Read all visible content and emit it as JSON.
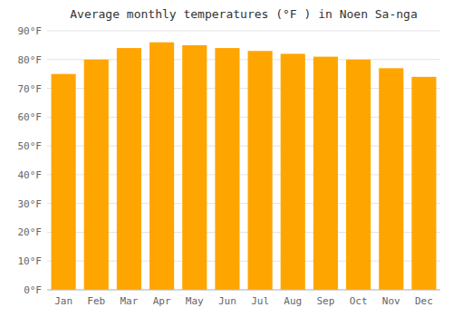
{
  "chart_data": {
    "type": "bar",
    "title": "Average monthly temperatures (°F ) in Noen Sa-nga",
    "categories": [
      "Jan",
      "Feb",
      "Mar",
      "Apr",
      "May",
      "Jun",
      "Jul",
      "Aug",
      "Sep",
      "Oct",
      "Nov",
      "Dec"
    ],
    "values": [
      75,
      80,
      84,
      86,
      85,
      84,
      83,
      82,
      81,
      80,
      77,
      74
    ],
    "color": "#FFA500",
    "ylim": [
      0,
      90
    ],
    "yticks": [
      {
        "value": 0,
        "label": "0°F"
      },
      {
        "value": 10,
        "label": "10°F"
      },
      {
        "value": 20,
        "label": "20°F"
      },
      {
        "value": 30,
        "label": "30°F"
      },
      {
        "value": 40,
        "label": "40°F"
      },
      {
        "value": 50,
        "label": "50°F"
      },
      {
        "value": 60,
        "label": "60°F"
      },
      {
        "value": 70,
        "label": "70°F"
      },
      {
        "value": 80,
        "label": "80°F"
      },
      {
        "value": 90,
        "label": "90°F"
      }
    ],
    "grid": true
  }
}
